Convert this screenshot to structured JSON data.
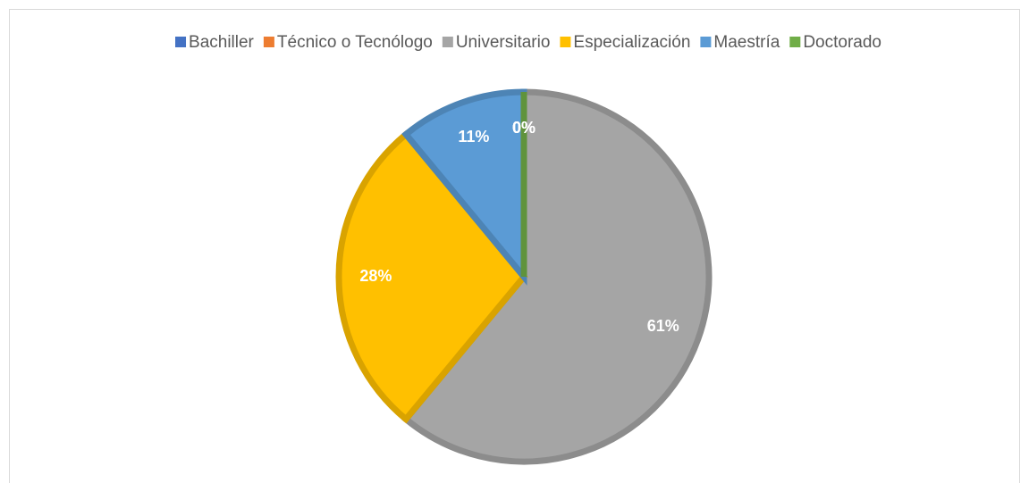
{
  "chart_data": {
    "type": "pie",
    "categories": [
      "Bachiller",
      "Técnico o Tecnólogo",
      "Universitario",
      "Especialización",
      "Maestría",
      "Doctorado"
    ],
    "values": [
      0,
      0,
      61,
      28,
      11,
      0
    ],
    "value_labels": [
      "0%",
      "0%",
      "61%",
      "28%",
      "11%",
      "0%"
    ],
    "colors": [
      "#4472c4",
      "#ed7d31",
      "#a5a5a5",
      "#ffc000",
      "#5b9bd5",
      "#70ad47"
    ],
    "legend": "top"
  }
}
